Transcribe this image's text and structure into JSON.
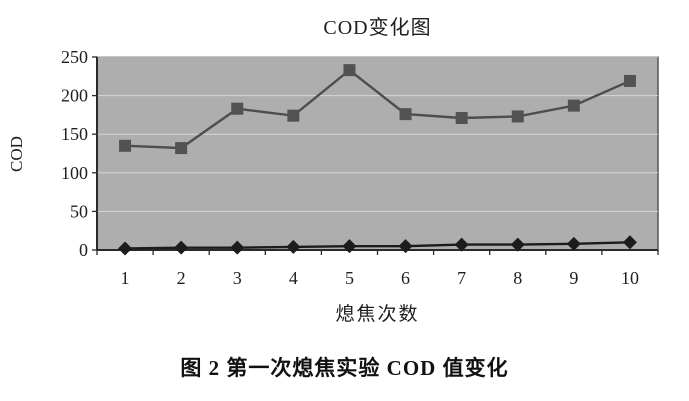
{
  "page": {
    "caption": "图 2  第一次熄焦实验 COD 值变化"
  },
  "chart_data": {
    "type": "line",
    "title": "COD变化图",
    "xlabel": "熄焦次数",
    "ylabel": "COD",
    "categories": [
      "1",
      "2",
      "3",
      "4",
      "5",
      "6",
      "7",
      "8",
      "9",
      "10"
    ],
    "series": [
      {
        "marker": "square",
        "color": "#525252",
        "line_color": "#4d4d4d",
        "values": [
          135,
          132,
          183,
          174,
          233,
          176,
          171,
          173,
          187,
          219
        ]
      },
      {
        "marker": "diamond",
        "color": "#1c1c1c",
        "line_color": "#1c1c1c",
        "values": [
          2,
          3,
          3,
          4,
          5,
          5,
          7,
          7,
          8,
          10
        ]
      }
    ],
    "ylim": [
      0,
      250
    ],
    "ytick_step": 50,
    "grid": true,
    "legend": "none",
    "colors": {
      "plot_bg": "#aeaeae",
      "grid_line": "#d6d6d6",
      "plot_border": "#4a4a4a",
      "axis_line": "#2a2a2a",
      "tick_text": "#1f1f1f"
    }
  }
}
